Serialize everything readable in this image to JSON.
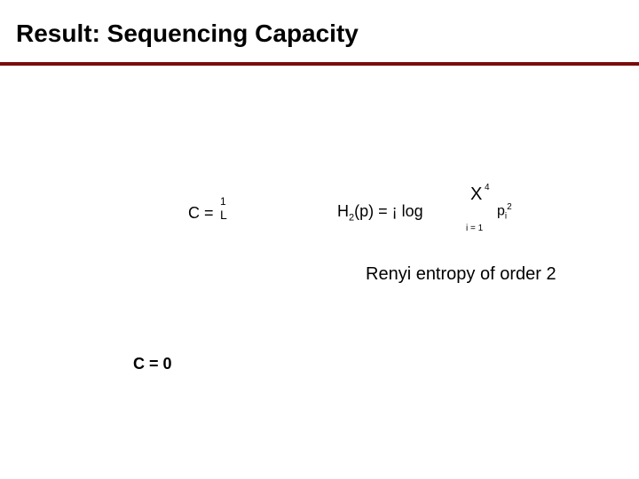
{
  "slide": {
    "title": "Result: Sequencing Capacity",
    "rule_color": "#7a0c0c",
    "background_color": "#ffffff",
    "title_fontsize": 28,
    "body_fontsize": 18,
    "caption_fontsize": 20
  },
  "equations": {
    "eq1": {
      "prefix": "C = ",
      "numerator": "1",
      "denominator": "L"
    },
    "eq2": {
      "lhs_H": "H",
      "lhs_sub": "2",
      "lhs_rest": "(p) =  ¡   log",
      "sum_symbol": "X",
      "sum_upper": "4",
      "sum_lower": "i = 1",
      "term_base": "p",
      "term_sub": "i",
      "term_sup": "2"
    },
    "eq3": "C = 0"
  },
  "caption": "Renyi entropy of order 2"
}
